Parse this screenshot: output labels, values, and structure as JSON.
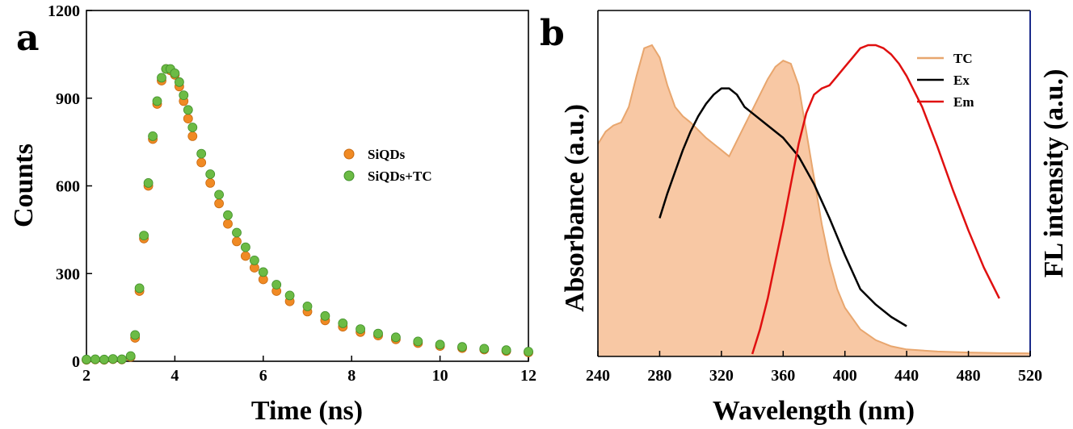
{
  "colors": {
    "siqds": "#F08A24",
    "siqds_tc": "#6CBB45",
    "siqds_tc_stroke": "#3F8F2A",
    "tc_fill": "#F8C8A4",
    "tc_line": "#E8A66E",
    "ex": "#000000",
    "em": "#E01010",
    "right_axis": "#1A2A8A"
  },
  "chart_data": [
    {
      "panel_label": "a",
      "type": "scatter",
      "title": "",
      "xlabel": "Time (ns)",
      "ylabel": "Counts",
      "xlim": [
        2,
        12
      ],
      "ylim": [
        0,
        1200
      ],
      "xticks": [
        "2",
        "4",
        "6",
        "8",
        "10",
        "12"
      ],
      "yticks": [
        "0",
        "300",
        "600",
        "900",
        "1200"
      ],
      "legend": {
        "placement": "center-right",
        "entries": [
          "SiQDs",
          "SiQDs+TC"
        ]
      },
      "series": [
        {
          "name": "SiQDs",
          "x": [
            2.0,
            2.2,
            2.4,
            2.6,
            2.8,
            3.0,
            3.1,
            3.2,
            3.3,
            3.4,
            3.5,
            3.6,
            3.7,
            3.8,
            3.9,
            4.0,
            4.1,
            4.2,
            4.3,
            4.4,
            4.6,
            4.8,
            5.0,
            5.2,
            5.4,
            5.6,
            5.8,
            6.0,
            6.3,
            6.6,
            7.0,
            7.4,
            7.8,
            8.2,
            8.6,
            9.0,
            9.5,
            10.0,
            10.5,
            11.0,
            11.5,
            12.0
          ],
          "y": [
            5,
            6,
            5,
            7,
            6,
            15,
            80,
            240,
            420,
            600,
            760,
            880,
            960,
            1000,
            995,
            980,
            940,
            890,
            830,
            770,
            680,
            610,
            540,
            470,
            410,
            360,
            320,
            280,
            240,
            205,
            170,
            140,
            118,
            100,
            88,
            75,
            62,
            52,
            45,
            40,
            35,
            30
          ]
        },
        {
          "name": "SiQDs+TC",
          "x": [
            2.0,
            2.2,
            2.4,
            2.6,
            2.8,
            3.0,
            3.1,
            3.2,
            3.3,
            3.4,
            3.5,
            3.6,
            3.7,
            3.8,
            3.9,
            4.0,
            4.1,
            4.2,
            4.3,
            4.4,
            4.6,
            4.8,
            5.0,
            5.2,
            5.4,
            5.6,
            5.8,
            6.0,
            6.3,
            6.6,
            7.0,
            7.4,
            7.8,
            8.2,
            8.6,
            9.0,
            9.5,
            10.0,
            10.5,
            11.0,
            11.5,
            12.0
          ],
          "y": [
            6,
            7,
            6,
            8,
            7,
            18,
            90,
            250,
            430,
            610,
            770,
            890,
            970,
            1000,
            1000,
            985,
            955,
            910,
            860,
            800,
            710,
            640,
            570,
            500,
            440,
            390,
            345,
            305,
            262,
            225,
            188,
            155,
            130,
            110,
            95,
            82,
            68,
            57,
            49,
            43,
            38,
            33
          ]
        }
      ]
    },
    {
      "panel_label": "b",
      "type": "line",
      "title": "",
      "xlabel": "Wavelength (nm)",
      "ylabel": "Absorbance (a.u.)",
      "ylabel_right": "FL intensity (a.u.)",
      "xlim": [
        240,
        520
      ],
      "ylim": [
        0,
        1
      ],
      "xticks": [
        "240",
        "280",
        "320",
        "360",
        "400",
        "440",
        "480",
        "520"
      ],
      "legend": {
        "placement": "top-right",
        "entries": [
          "TC",
          "Ex",
          "Em"
        ]
      },
      "series": [
        {
          "name": "TC",
          "style": "area",
          "x": [
            240,
            245,
            250,
            255,
            260,
            265,
            270,
            275,
            280,
            285,
            290,
            295,
            300,
            310,
            320,
            325,
            330,
            335,
            340,
            345,
            350,
            355,
            360,
            365,
            370,
            375,
            380,
            385,
            390,
            395,
            400,
            410,
            420,
            430,
            440,
            460,
            480,
            500,
            520
          ],
          "y": [
            0.68,
            0.72,
            0.74,
            0.75,
            0.8,
            0.9,
            0.99,
            1.0,
            0.96,
            0.87,
            0.8,
            0.77,
            0.75,
            0.7,
            0.66,
            0.64,
            0.69,
            0.74,
            0.79,
            0.84,
            0.89,
            0.93,
            0.95,
            0.94,
            0.87,
            0.72,
            0.57,
            0.42,
            0.3,
            0.21,
            0.15,
            0.08,
            0.045,
            0.025,
            0.015,
            0.008,
            0.005,
            0.003,
            0.002
          ]
        },
        {
          "name": "Ex",
          "style": "line",
          "x": [
            280,
            285,
            290,
            295,
            300,
            305,
            310,
            315,
            320,
            325,
            330,
            335,
            340,
            350,
            360,
            370,
            380,
            390,
            400,
            410,
            420,
            430,
            440
          ],
          "y": [
            0.44,
            0.52,
            0.59,
            0.66,
            0.72,
            0.77,
            0.81,
            0.84,
            0.86,
            0.86,
            0.84,
            0.8,
            0.78,
            0.74,
            0.7,
            0.64,
            0.55,
            0.44,
            0.32,
            0.21,
            0.16,
            0.12,
            0.09
          ]
        },
        {
          "name": "Em",
          "style": "line",
          "x": [
            340,
            345,
            350,
            355,
            360,
            365,
            370,
            375,
            380,
            385,
            390,
            395,
            400,
            405,
            410,
            415,
            420,
            425,
            430,
            435,
            440,
            450,
            460,
            470,
            480,
            490,
            500
          ],
          "y": [
            0.0,
            0.08,
            0.18,
            0.3,
            0.42,
            0.55,
            0.68,
            0.78,
            0.84,
            0.86,
            0.87,
            0.9,
            0.93,
            0.96,
            0.99,
            1.0,
            1.0,
            0.99,
            0.97,
            0.94,
            0.9,
            0.8,
            0.67,
            0.53,
            0.4,
            0.28,
            0.18
          ]
        }
      ]
    }
  ]
}
